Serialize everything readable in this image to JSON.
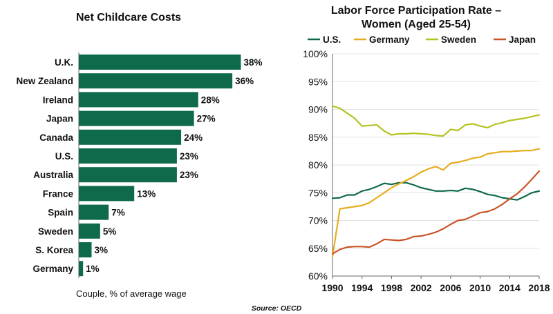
{
  "colors": {
    "bar": "#0e6a4a",
    "axis": "#666666",
    "grid": "#e3e3e3"
  },
  "source": "Source: OECD",
  "chart_data": [
    {
      "type": "bar",
      "orientation": "horizontal",
      "title": "Net Childcare Costs",
      "categories": [
        "U.K.",
        "New Zealand",
        "Ireland",
        "Japan",
        "Canada",
        "U.S.",
        "Australia",
        "France",
        "Spain",
        "Sweden",
        "S. Korea",
        "Germany"
      ],
      "values": [
        38,
        36,
        28,
        27,
        24,
        23,
        23,
        13,
        7,
        5,
        3,
        1
      ],
      "data_labels": [
        "38%",
        "36%",
        "28%",
        "27%",
        "24%",
        "23%",
        "23%",
        "13%",
        "7%",
        "5%",
        "3%",
        "1%"
      ],
      "xlabel": "Couple, % of average wage",
      "unit": "%",
      "color": "#0e6a4a",
      "grid": false,
      "legend": "none"
    },
    {
      "type": "line",
      "title": "Labor Force Participation Rate – Women (Aged 25-54)",
      "title_lines": [
        "Labor Force Participation Rate –",
        "Women (Aged 25-54)"
      ],
      "x": [
        1990,
        1991,
        1992,
        1993,
        1994,
        1995,
        1996,
        1997,
        1998,
        1999,
        2000,
        2001,
        2002,
        2003,
        2004,
        2005,
        2006,
        2007,
        2008,
        2009,
        2010,
        2011,
        2012,
        2013,
        2014,
        2015,
        2016,
        2017,
        2018
      ],
      "xticks": [
        1990,
        1994,
        1998,
        2002,
        2006,
        2010,
        2014,
        2018
      ],
      "yticks": [
        "60%",
        "65%",
        "70%",
        "75%",
        "80%",
        "85%",
        "90%",
        "95%",
        "100%"
      ],
      "ylim": [
        60,
        100
      ],
      "xlim": [
        1990,
        2018
      ],
      "grid": true,
      "legend": "top",
      "series": [
        {
          "name": "U.S.",
          "color": "#0e6a4a",
          "values": [
            74.0,
            74.1,
            74.6,
            74.6,
            75.3,
            75.6,
            76.1,
            76.7,
            76.5,
            76.8,
            76.8,
            76.4,
            75.9,
            75.6,
            75.3,
            75.3,
            75.4,
            75.3,
            75.8,
            75.6,
            75.2,
            74.7,
            74.5,
            74.1,
            73.9,
            73.7,
            74.3,
            75.0,
            75.3
          ]
        },
        {
          "name": "Germany",
          "color": "#e6ad1f",
          "values": [
            63.5,
            72.1,
            72.3,
            72.5,
            72.7,
            73.2,
            74.1,
            75.0,
            75.9,
            76.6,
            77.2,
            77.9,
            78.7,
            79.3,
            79.7,
            79.1,
            80.3,
            80.5,
            80.8,
            81.2,
            81.4,
            82.0,
            82.2,
            82.4,
            82.4,
            82.5,
            82.6,
            82.6,
            82.9
          ]
        },
        {
          "name": "Sweden",
          "color": "#b5c321",
          "values": [
            90.6,
            90.2,
            89.3,
            88.4,
            87.0,
            87.1,
            87.2,
            86.1,
            85.4,
            85.6,
            85.6,
            85.7,
            85.6,
            85.5,
            85.3,
            85.2,
            86.4,
            86.2,
            87.2,
            87.4,
            87.0,
            86.7,
            87.3,
            87.6,
            88.0,
            88.2,
            88.4,
            88.7,
            89.0
          ]
        },
        {
          "name": "Japan",
          "color": "#c9542a",
          "values": [
            64.0,
            64.8,
            65.2,
            65.3,
            65.3,
            65.2,
            65.8,
            66.6,
            66.5,
            66.4,
            66.6,
            67.1,
            67.2,
            67.5,
            67.9,
            68.5,
            69.3,
            70.0,
            70.2,
            70.8,
            71.4,
            71.6,
            72.1,
            72.9,
            73.9,
            74.8,
            76.0,
            77.4,
            78.9
          ]
        }
      ]
    }
  ]
}
